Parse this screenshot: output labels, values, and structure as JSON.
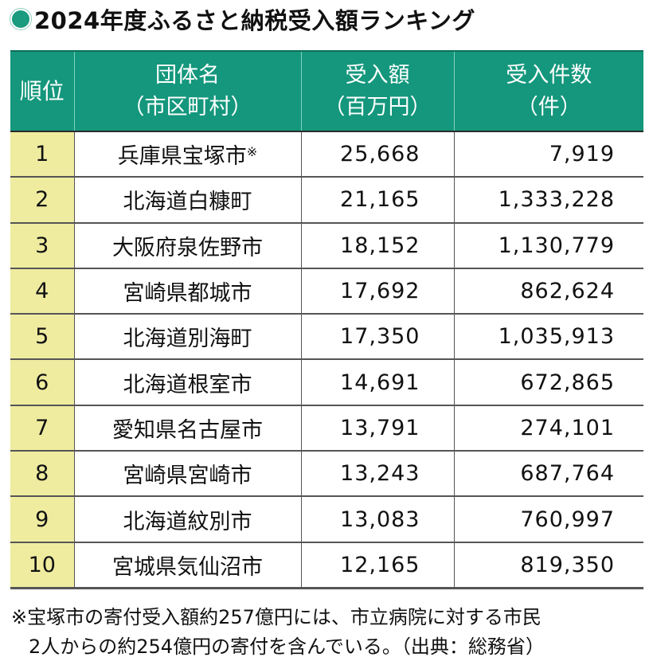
{
  "title": "2024年度ふるさと納税受入額ランキング",
  "title_icon": "green-circle-bullet",
  "colors": {
    "header_bg": "#14977c",
    "rank_bg": "#efeca0",
    "bullet": "#1a9a7e"
  },
  "table": {
    "headers": [
      {
        "line1": "順位",
        "line2": ""
      },
      {
        "line1": "団体名",
        "line2": "（市区町村）"
      },
      {
        "line1": "受入額",
        "line2": "（百万円）"
      },
      {
        "line1": "受入件数",
        "line2": "（件）"
      }
    ],
    "rows": [
      {
        "rank": "1",
        "name": "兵庫県宝塚市",
        "mark": "※",
        "amount": "25,668",
        "count": "7,919"
      },
      {
        "rank": "2",
        "name": "北海道白糠町",
        "mark": "",
        "amount": "21,165",
        "count": "1,333,228"
      },
      {
        "rank": "3",
        "name": "大阪府泉佐野市",
        "mark": "",
        "amount": "18,152",
        "count": "1,130,779"
      },
      {
        "rank": "4",
        "name": "宮崎県都城市",
        "mark": "",
        "amount": "17,692",
        "count": "862,624"
      },
      {
        "rank": "5",
        "name": "北海道別海町",
        "mark": "",
        "amount": "17,350",
        "count": "1,035,913"
      },
      {
        "rank": "6",
        "name": "北海道根室市",
        "mark": "",
        "amount": "14,691",
        "count": "672,865"
      },
      {
        "rank": "7",
        "name": "愛知県名古屋市",
        "mark": "",
        "amount": "13,791",
        "count": "274,101"
      },
      {
        "rank": "8",
        "name": "宮崎県宮崎市",
        "mark": "",
        "amount": "13,243",
        "count": "687,764"
      },
      {
        "rank": "9",
        "name": "北海道紋別市",
        "mark": "",
        "amount": "13,083",
        "count": "760,997"
      },
      {
        "rank": "10",
        "name": "宮城県気仙沼市",
        "mark": "",
        "amount": "12,165",
        "count": "819,350"
      }
    ]
  },
  "footnote": {
    "line1": "※宝塚市の寄付受入額約257億円には、市立病院に対する市民",
    "line2": "2人からの約254億円の寄付を含んでいる。（出典：総務省）"
  }
}
